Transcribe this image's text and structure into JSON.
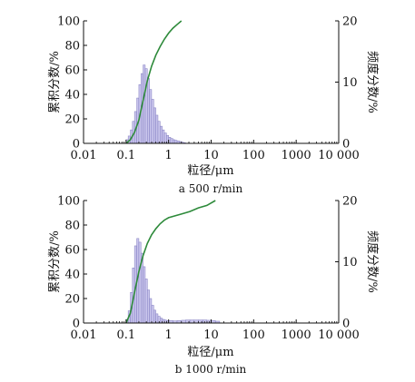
{
  "chart_data": [
    {
      "type": "bar+line",
      "caption": "a 500 r/min",
      "xlabel": "粒径/μm",
      "ylabel_left": "累积分数/%",
      "ylabel_right": "频度分数/%",
      "xscale": "log",
      "xlim": [
        0.01,
        10000
      ],
      "xticks": [
        "0.01",
        "0.1",
        "1",
        "10",
        "100",
        "1000",
        "10 000"
      ],
      "ylim_left": [
        0,
        100
      ],
      "yticks_left": [
        "0",
        "20",
        "40",
        "60",
        "80",
        "100"
      ],
      "ylim_right": [
        0,
        20
      ],
      "yticks_right": [
        "0",
        "10",
        "20"
      ],
      "histogram": {
        "name": "频度分数",
        "x": [
          0.1,
          0.112,
          0.126,
          0.141,
          0.158,
          0.178,
          0.2,
          0.224,
          0.251,
          0.282,
          0.316,
          0.355,
          0.398,
          0.447,
          0.501,
          0.562,
          0.631,
          0.708,
          0.794,
          0.891,
          1.0,
          1.12,
          1.26,
          1.41,
          1.58,
          1.78,
          2.0,
          2.24
        ],
        "values": [
          0.6,
          1.2,
          2.2,
          3.6,
          5.2,
          7.4,
          9.6,
          11.4,
          12.8,
          12.2,
          10.6,
          8.8,
          7.2,
          5.8,
          4.6,
          3.6,
          2.8,
          2.2,
          1.7,
          1.3,
          1.0,
          0.8,
          0.6,
          0.5,
          0.4,
          0.3,
          0.2,
          0.1
        ]
      },
      "cumulative": {
        "name": "累积分数",
        "x": [
          0.1,
          0.126,
          0.158,
          0.2,
          0.251,
          0.316,
          0.398,
          0.501,
          0.631,
          0.794,
          1.0,
          1.26,
          1.58,
          2.0
        ],
        "values": [
          0,
          3,
          9,
          19,
          35,
          51,
          63,
          72,
          79,
          85,
          90,
          94,
          97,
          100
        ]
      },
      "colors": {
        "bars": "#c9c5ec",
        "bar_edge": "#7f7abf",
        "line": "#2d8a3a"
      }
    },
    {
      "type": "bar+line",
      "caption": "b 1000 r/min",
      "xlabel": "粒径/μm",
      "ylabel_left": "累积分数/%",
      "ylabel_right": "频度分数/%",
      "xscale": "log",
      "xlim": [
        0.01,
        10000
      ],
      "xticks": [
        "0.01",
        "0.1",
        "1",
        "10",
        "100",
        "1000",
        "10 000"
      ],
      "ylim_left": [
        0,
        100
      ],
      "yticks_left": [
        "0",
        "20",
        "40",
        "60",
        "80",
        "100"
      ],
      "ylim_right": [
        0,
        20
      ],
      "yticks_right": [
        "0",
        "10",
        "20"
      ],
      "histogram": {
        "name": "频度分数",
        "x": [
          0.1,
          0.112,
          0.126,
          0.141,
          0.158,
          0.178,
          0.2,
          0.224,
          0.251,
          0.282,
          0.316,
          0.355,
          0.398,
          0.447,
          0.501,
          0.562,
          0.631,
          0.708,
          0.794,
          0.891,
          1.0,
          1.26,
          1.58,
          2.0,
          2.51,
          3.16,
          3.98,
          5.01,
          6.31,
          7.94,
          10.0,
          12.6
        ],
        "values": [
          0.6,
          2.0,
          5.0,
          9.0,
          12.6,
          13.8,
          13.2,
          11.4,
          9.2,
          7.2,
          5.4,
          4.0,
          2.9,
          2.1,
          1.5,
          1.1,
          0.8,
          0.6,
          0.5,
          0.4,
          0.4,
          0.35,
          0.4,
          0.45,
          0.5,
          0.5,
          0.5,
          0.5,
          0.5,
          0.45,
          0.4,
          0.3
        ]
      },
      "cumulative": {
        "name": "累积分数",
        "x": [
          0.1,
          0.126,
          0.158,
          0.2,
          0.251,
          0.316,
          0.398,
          0.501,
          0.631,
          0.794,
          1.0,
          2.0,
          3.16,
          5.01,
          7.94,
          12.6
        ],
        "values": [
          0,
          8,
          25,
          42,
          55,
          65,
          72,
          77,
          81,
          84,
          86,
          89,
          91,
          94,
          96,
          100
        ]
      },
      "colors": {
        "bars": "#c9c5ec",
        "bar_edge": "#7f7abf",
        "line": "#2d8a3a"
      }
    }
  ]
}
